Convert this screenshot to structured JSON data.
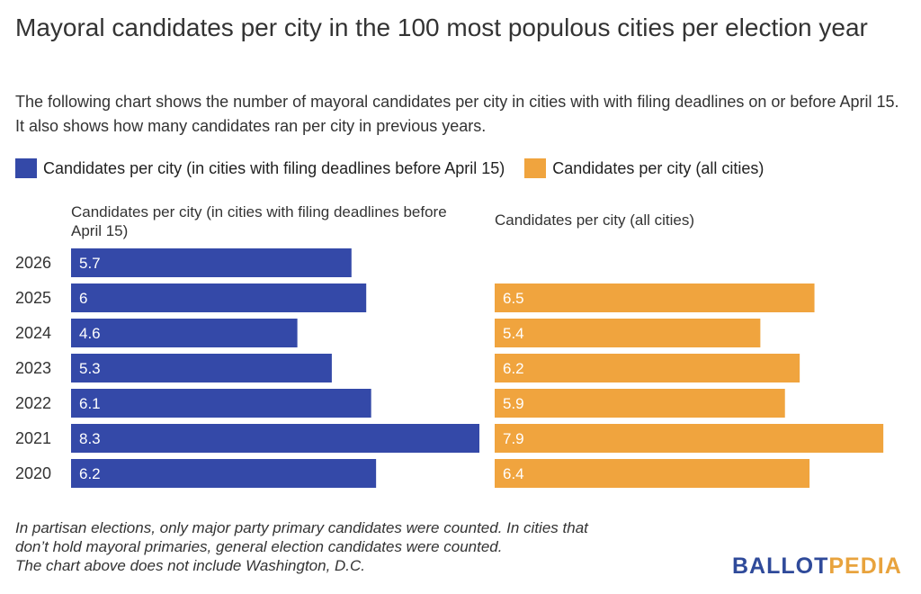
{
  "title": "Mayoral candidates per city in the 100 most populous cities per election year",
  "subtitle": "The following chart shows the number of mayoral candidates per city in cities with with filing deadlines on or before April 15. It also shows how many candidates ran per city in previous years.",
  "legend": {
    "items": [
      {
        "label": "Candidates per city (in cities with filing deadlines before April 15)",
        "color": "#3449a8"
      },
      {
        "label": "Candidates per city (all cities)",
        "color": "#f0a43e"
      }
    ]
  },
  "panels": {
    "left_title": "Candidates per city (in cities with filing deadlines before April 15)",
    "right_title": "Candidates per city (all cities)"
  },
  "chart_data": {
    "type": "bar",
    "orientation": "horizontal",
    "categories": [
      "2026",
      "2025",
      "2024",
      "2023",
      "2022",
      "2021",
      "2020"
    ],
    "series": [
      {
        "name": "Candidates per city (in cities with filing deadlines before April 15)",
        "color": "#3449a8",
        "values": [
          5.7,
          6,
          4.6,
          5.3,
          6.1,
          8.3,
          6.2
        ]
      },
      {
        "name": "Candidates per city (all cities)",
        "color": "#f0a43e",
        "values": [
          null,
          6.5,
          5.4,
          6.2,
          5.9,
          7.9,
          6.4
        ]
      }
    ],
    "title": "Mayoral candidates per city in the 100 most populous cities per election year",
    "xlabel": "",
    "ylabel": "",
    "grid": false,
    "legend_position": "top-left"
  },
  "footnote": [
    "In partisan elections, only major party primary candidates were counted. In cities that",
    "don’t hold mayoral primaries, general election candidates were counted.",
    "The chart above does not include Washington, D.C."
  ],
  "logo": {
    "part1": "BALLOT",
    "part2": "PEDIA"
  }
}
